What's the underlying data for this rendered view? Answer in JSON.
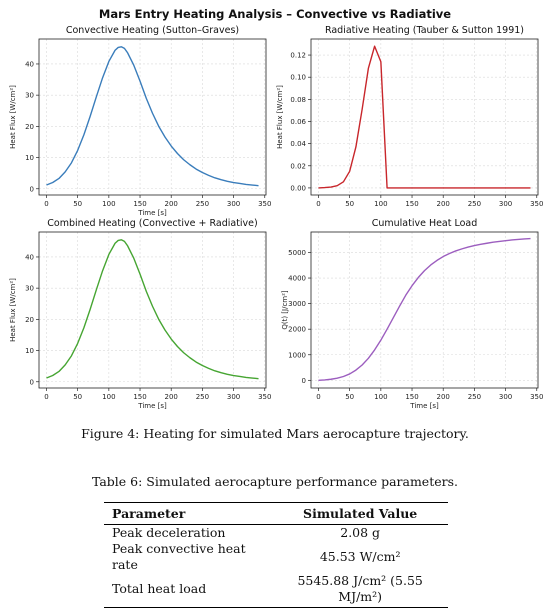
{
  "figure": {
    "suptitle": "Mars Entry Heating Analysis – Convective vs Radiative",
    "caption": "Figure 4: Heating for simulated Mars aerocapture trajectory."
  },
  "chart_data": [
    {
      "type": "line",
      "title": "Convective Heating (Sutton–Graves)",
      "xlabel": "Time [s]",
      "ylabel": "Heat Flux [W/cm²]",
      "xlim": [
        -12,
        352
      ],
      "ylim": [
        -2,
        48
      ],
      "xticks": [
        0,
        50,
        100,
        150,
        200,
        250,
        300,
        350
      ],
      "yticks": [
        0,
        10,
        20,
        30,
        40
      ],
      "grid": true,
      "color": "#3a7dbb",
      "x": [
        0,
        10,
        20,
        30,
        40,
        50,
        60,
        70,
        80,
        90,
        100,
        110,
        115,
        120,
        125,
        130,
        140,
        150,
        160,
        170,
        180,
        190,
        200,
        210,
        220,
        230,
        240,
        250,
        260,
        270,
        280,
        290,
        300,
        310,
        320,
        330,
        340
      ],
      "y": [
        1.2,
        2.0,
        3.3,
        5.4,
        8.3,
        12.3,
        17.3,
        23.2,
        29.5,
        35.6,
        40.8,
        44.4,
        45.3,
        45.5,
        45.0,
        43.6,
        39.6,
        34.5,
        29.0,
        24.2,
        20.0,
        16.6,
        13.7,
        11.3,
        9.3,
        7.7,
        6.3,
        5.2,
        4.3,
        3.5,
        2.9,
        2.4,
        2.0,
        1.7,
        1.4,
        1.2,
        1.0
      ]
    },
    {
      "type": "line",
      "title": "Radiative Heating (Tauber & Sutton 1991)",
      "xlabel": "",
      "ylabel": "Heat Flux [W/cm²]",
      "xlim": [
        -12,
        352
      ],
      "ylim": [
        -0.0064,
        0.1345
      ],
      "xticks": [
        0,
        50,
        100,
        150,
        200,
        250,
        300,
        350
      ],
      "yticks": [
        0.0,
        0.02,
        0.04,
        0.06,
        0.08,
        0.1,
        0.12
      ],
      "ytick_decimals": 2,
      "grid": true,
      "color": "#c8262b",
      "x": [
        0,
        10,
        20,
        30,
        40,
        50,
        60,
        70,
        80,
        90,
        100,
        110,
        120,
        130,
        140,
        150,
        200,
        250,
        300,
        340
      ],
      "y": [
        0.0,
        0.0003,
        0.0008,
        0.002,
        0.0055,
        0.015,
        0.037,
        0.071,
        0.108,
        0.128,
        0.114,
        0.0,
        0.0,
        0.0,
        0.0,
        0.0,
        0.0,
        0.0,
        0.0,
        0.0
      ]
    },
    {
      "type": "line",
      "title": "Combined Heating (Convective + Radiative)",
      "xlabel": "Time [s]",
      "ylabel": "Heat Flux [W/cm²]",
      "xlim": [
        -12,
        352
      ],
      "ylim": [
        -2,
        48
      ],
      "xticks": [
        0,
        50,
        100,
        150,
        200,
        250,
        300,
        350
      ],
      "yticks": [
        0,
        10,
        20,
        30,
        40
      ],
      "grid": true,
      "color": "#46a532",
      "x": [
        0,
        10,
        20,
        30,
        40,
        50,
        60,
        70,
        80,
        90,
        100,
        110,
        115,
        120,
        125,
        130,
        140,
        150,
        160,
        170,
        180,
        190,
        200,
        210,
        220,
        230,
        240,
        250,
        260,
        270,
        280,
        290,
        300,
        310,
        320,
        330,
        340
      ],
      "y": [
        1.2,
        2.0,
        3.3,
        5.4,
        8.3,
        12.3,
        17.3,
        23.2,
        29.5,
        35.6,
        40.8,
        44.4,
        45.3,
        45.5,
        45.0,
        43.6,
        39.6,
        34.5,
        29.0,
        24.2,
        20.0,
        16.6,
        13.7,
        11.3,
        9.3,
        7.7,
        6.3,
        5.2,
        4.3,
        3.5,
        2.9,
        2.4,
        2.0,
        1.7,
        1.4,
        1.2,
        1.0
      ]
    },
    {
      "type": "line",
      "title": "Cumulative Heat Load",
      "xlabel": "Time [s]",
      "ylabel": "Q(t) [J/cm²]",
      "xlim": [
        -12,
        352
      ],
      "ylim": [
        -300,
        5800
      ],
      "xticks": [
        0,
        50,
        100,
        150,
        200,
        250,
        300,
        350
      ],
      "yticks": [
        0,
        1000,
        2000,
        3000,
        4000,
        5000
      ],
      "grid": true,
      "color": "#9c5ebf",
      "x": [
        0,
        10,
        20,
        30,
        40,
        50,
        60,
        70,
        80,
        90,
        100,
        110,
        120,
        130,
        140,
        150,
        160,
        170,
        180,
        190,
        200,
        210,
        220,
        230,
        240,
        250,
        260,
        270,
        280,
        290,
        300,
        310,
        320,
        330,
        340
      ],
      "y": [
        0,
        16,
        42,
        85,
        150,
        250,
        400,
        600,
        860,
        1190,
        1570,
        2000,
        2450,
        2900,
        3330,
        3700,
        4020,
        4290,
        4510,
        4690,
        4840,
        4960,
        5060,
        5140,
        5210,
        5270,
        5320,
        5360,
        5400,
        5430,
        5460,
        5490,
        5510,
        5530,
        5545
      ]
    }
  ],
  "table": {
    "caption": "Table 6: Simulated aerocapture performance parameters.",
    "headers": [
      "Parameter",
      "Simulated Value"
    ],
    "rows": [
      [
        "Peak deceleration",
        "2.08 g"
      ],
      [
        "Peak convective heat rate",
        "45.53 W/cm²"
      ],
      [
        "Total heat load",
        "5545.88 J/cm² (5.55 MJ/m²)"
      ]
    ]
  }
}
